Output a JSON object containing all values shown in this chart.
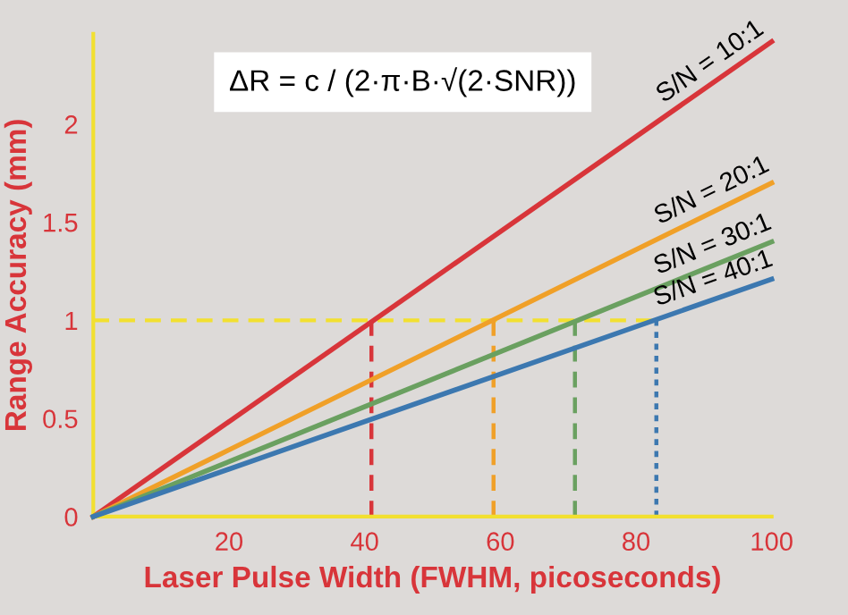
{
  "chart_data": {
    "type": "line",
    "xlabel": "Laser Pulse Width (FWHM, picoseconds)",
    "ylabel": "Range Accuracy (mm)",
    "annotations": [
      "ΔR = c / (2·π·B·√(2·SNR))"
    ],
    "xlim": [
      0,
      100
    ],
    "ylim": [
      0,
      2.46
    ],
    "xticks": [
      20,
      40,
      60,
      80,
      100
    ],
    "yticks": [
      0,
      0.5,
      1,
      1.5,
      2
    ],
    "grid": false,
    "legend": false,
    "marker": "none",
    "series": [
      {
        "name": "S/N = 10:1",
        "color": "#d8353a",
        "x": [
          0,
          100
        ],
        "values": [
          0,
          2.42
        ]
      },
      {
        "name": "S/N = 20:1",
        "color": "#f0a028",
        "x": [
          0,
          100
        ],
        "values": [
          0,
          1.7
        ]
      },
      {
        "name": "S/N = 30:1",
        "color": "#6aa060",
        "x": [
          0,
          100
        ],
        "values": [
          0,
          1.4
        ]
      },
      {
        "name": "S/N = 40:1",
        "color": "#3c78b0",
        "x": [
          0,
          100
        ],
        "values": [
          0,
          1.21
        ]
      },
      {
        "color": "#f2e030",
        "x": [
          0,
          83
        ],
        "values": [
          1,
          1
        ],
        "line_style": "dashed"
      },
      {
        "color": "#d8353a",
        "x": [
          41,
          41
        ],
        "values": [
          0,
          1
        ],
        "line_style": "dashed"
      },
      {
        "color": "#f0a028",
        "x": [
          59,
          59
        ],
        "values": [
          0,
          1
        ],
        "line_style": "dashed"
      },
      {
        "color": "#6aa060",
        "x": [
          71,
          71
        ],
        "values": [
          0,
          1
        ],
        "line_style": "dashed"
      },
      {
        "color": "#3c78b0",
        "x": [
          83,
          83
        ],
        "values": [
          0,
          1
        ],
        "line_style": "dotted"
      }
    ]
  }
}
